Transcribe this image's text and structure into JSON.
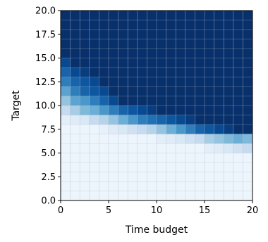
{
  "chart_data": {
    "type": "heatmap",
    "xlabel": "Time budget",
    "ylabel": "Target",
    "xlim": [
      0,
      20
    ],
    "ylim": [
      0,
      20
    ],
    "xticks": [
      0,
      5,
      10,
      15,
      20
    ],
    "xtick_labels": [
      "0",
      "5",
      "10",
      "15",
      "20"
    ],
    "yticks": [
      0,
      2.5,
      5,
      7.5,
      10,
      12.5,
      15,
      17.5,
      20
    ],
    "ytick_labels": [
      "0.0",
      "2.5",
      "5.0",
      "7.5",
      "10.0",
      "12.5",
      "15.0",
      "17.5",
      "20.0"
    ],
    "x_bins": [
      0,
      1,
      2,
      3,
      4,
      5,
      6,
      7,
      8,
      9,
      10,
      11,
      12,
      13,
      14,
      15,
      16,
      17,
      18,
      19
    ],
    "y_bins": [
      0,
      1,
      2,
      3,
      4,
      5,
      6,
      7,
      8,
      9,
      10,
      11,
      12,
      13,
      14,
      15,
      16,
      17,
      18,
      19
    ],
    "colormap": "Blues",
    "grid": true,
    "grid_color": "#b0b8cc",
    "values": [
      [
        0.05,
        0.05,
        0.05,
        0.05,
        0.05,
        0.05,
        0.05,
        0.05,
        0.05,
        0.05,
        0.05,
        0.05,
        0.05,
        0.05,
        0.05,
        0.05,
        0.05,
        0.05,
        0.05,
        0.05
      ],
      [
        0.05,
        0.05,
        0.05,
        0.05,
        0.05,
        0.05,
        0.05,
        0.05,
        0.05,
        0.05,
        0.05,
        0.05,
        0.05,
        0.05,
        0.05,
        0.05,
        0.05,
        0.05,
        0.05,
        0.05
      ],
      [
        0.05,
        0.05,
        0.05,
        0.05,
        0.05,
        0.05,
        0.05,
        0.05,
        0.05,
        0.05,
        0.05,
        0.05,
        0.05,
        0.05,
        0.05,
        0.05,
        0.05,
        0.05,
        0.05,
        0.05
      ],
      [
        0.05,
        0.05,
        0.05,
        0.05,
        0.05,
        0.05,
        0.05,
        0.05,
        0.05,
        0.05,
        0.05,
        0.05,
        0.05,
        0.05,
        0.05,
        0.05,
        0.05,
        0.05,
        0.05,
        0.05
      ],
      [
        0.05,
        0.05,
        0.05,
        0.05,
        0.05,
        0.05,
        0.05,
        0.05,
        0.05,
        0.05,
        0.05,
        0.05,
        0.05,
        0.05,
        0.05,
        0.05,
        0.05,
        0.05,
        0.05,
        0.05
      ],
      [
        0.05,
        0.05,
        0.05,
        0.05,
        0.05,
        0.05,
        0.05,
        0.05,
        0.05,
        0.05,
        0.05,
        0.05,
        0.05,
        0.05,
        0.05,
        0.1,
        0.12,
        0.15,
        0.2,
        0.25
      ],
      [
        0.05,
        0.05,
        0.05,
        0.05,
        0.05,
        0.05,
        0.05,
        0.05,
        0.05,
        0.05,
        0.1,
        0.12,
        0.15,
        0.2,
        0.25,
        0.35,
        0.4,
        0.45,
        0.5,
        0.45
      ],
      [
        0.05,
        0.05,
        0.05,
        0.05,
        0.08,
        0.12,
        0.15,
        0.2,
        0.25,
        0.3,
        0.4,
        0.5,
        0.6,
        0.7,
        0.8,
        0.85,
        0.9,
        0.95,
        1,
        1
      ],
      [
        0.1,
        0.12,
        0.15,
        0.25,
        0.3,
        0.4,
        0.5,
        0.6,
        0.7,
        0.75,
        0.8,
        0.85,
        0.9,
        0.95,
        1,
        1,
        1,
        1,
        1,
        1
      ],
      [
        0.25,
        0.35,
        0.45,
        0.5,
        0.6,
        0.7,
        0.8,
        0.85,
        0.9,
        0.95,
        1,
        1,
        1,
        1,
        1,
        1,
        1,
        1,
        1,
        1
      ],
      [
        0.4,
        0.55,
        0.6,
        0.7,
        0.8,
        0.9,
        1,
        1,
        1,
        1,
        1,
        1,
        1,
        1,
        1,
        1,
        1,
        1,
        1,
        1
      ],
      [
        0.55,
        0.7,
        0.8,
        0.85,
        0.9,
        1,
        1,
        1,
        1,
        1,
        1,
        1,
        1,
        1,
        1,
        1,
        1,
        1,
        1,
        1
      ],
      [
        0.7,
        0.8,
        0.85,
        0.9,
        1,
        1,
        1,
        1,
        1,
        1,
        1,
        1,
        1,
        1,
        1,
        1,
        1,
        1,
        1,
        1
      ],
      [
        0.8,
        0.9,
        0.95,
        1,
        1,
        1,
        1,
        1,
        1,
        1,
        1,
        1,
        1,
        1,
        1,
        1,
        1,
        1,
        1,
        1
      ],
      [
        0.9,
        1,
        1,
        1,
        1,
        1,
        1,
        1,
        1,
        1,
        1,
        1,
        1,
        1,
        1,
        1,
        1,
        1,
        1,
        1
      ],
      [
        1,
        1,
        1,
        1,
        1,
        1,
        1,
        1,
        1,
        1,
        1,
        1,
        1,
        1,
        1,
        1,
        1,
        1,
        1,
        1
      ],
      [
        1,
        1,
        1,
        1,
        1,
        1,
        1,
        1,
        1,
        1,
        1,
        1,
        1,
        1,
        1,
        1,
        1,
        1,
        1,
        1
      ],
      [
        1,
        1,
        1,
        1,
        1,
        1,
        1,
        1,
        1,
        1,
        1,
        1,
        1,
        1,
        1,
        1,
        1,
        1,
        1,
        1
      ],
      [
        1,
        1,
        1,
        1,
        1,
        1,
        1,
        1,
        1,
        1,
        1,
        1,
        1,
        1,
        1,
        1,
        1,
        1,
        1,
        1
      ],
      [
        1,
        1,
        1,
        1,
        1,
        1,
        1,
        1,
        1,
        1,
        1,
        1,
        1,
        1,
        1,
        1,
        1,
        1,
        1,
        1
      ]
    ]
  }
}
